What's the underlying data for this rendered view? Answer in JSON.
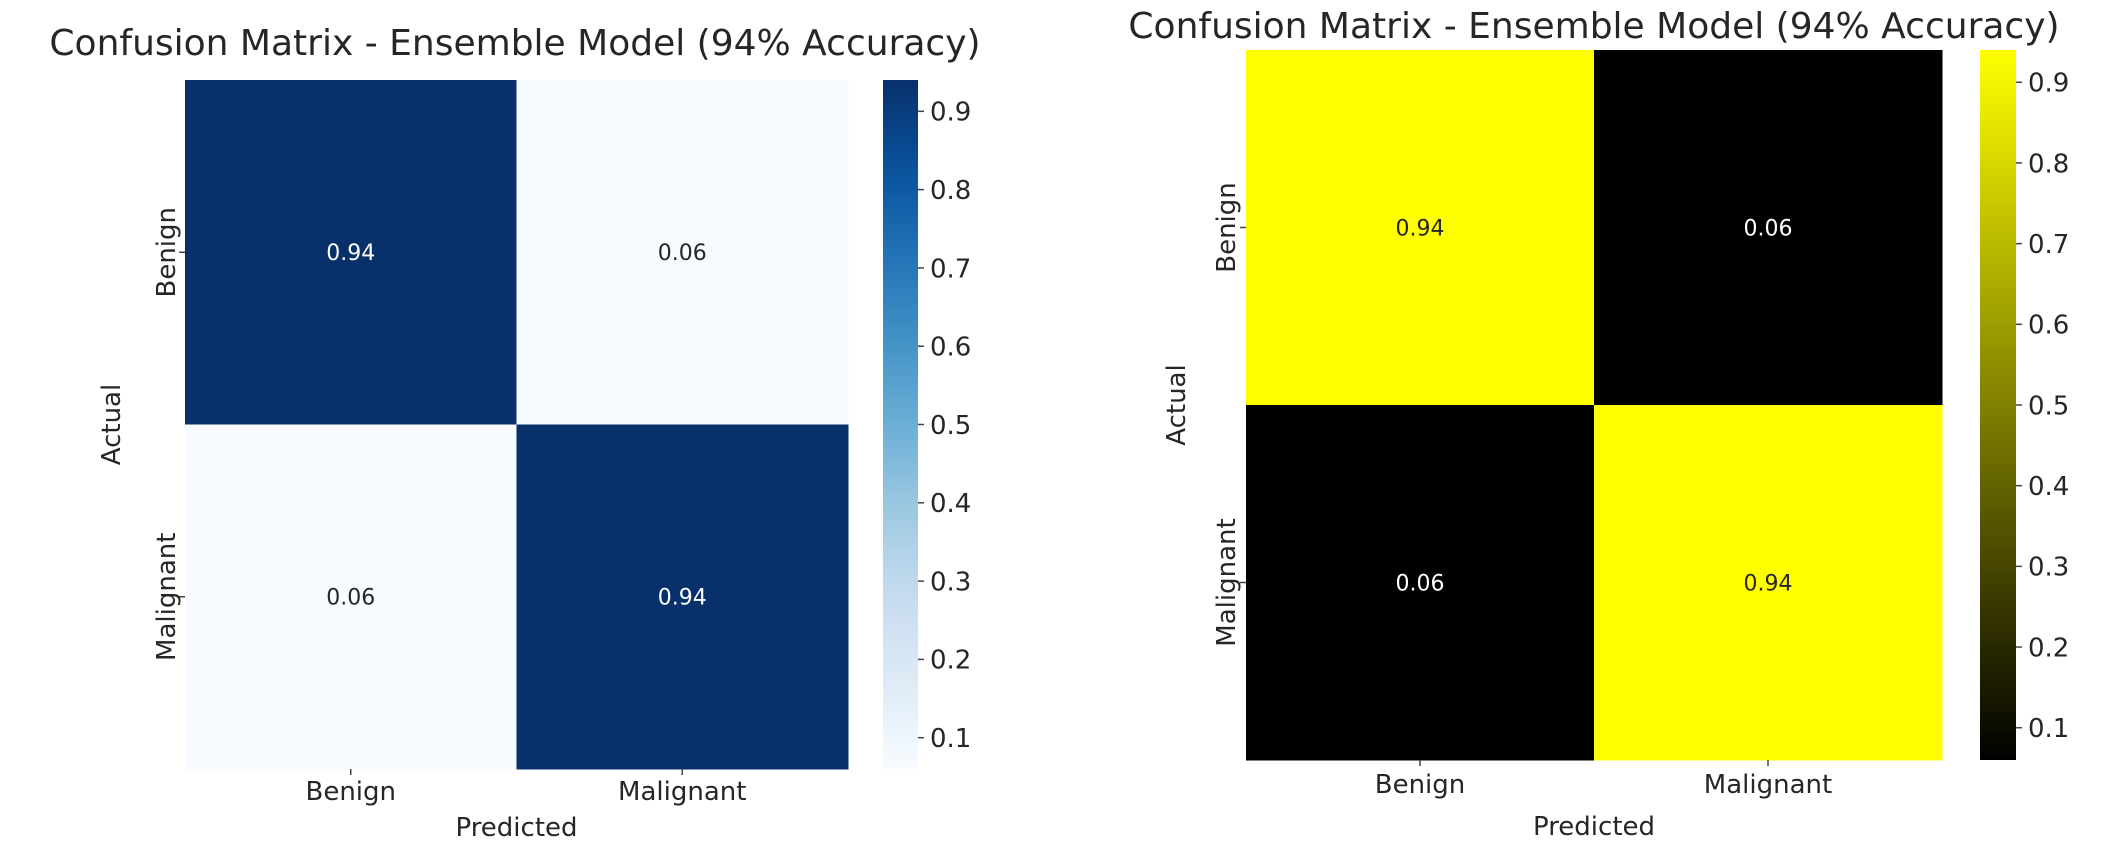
{
  "chart_data": [
    {
      "type": "heatmap",
      "title": "Confusion Matrix - Ensemble Model (94% Accuracy)",
      "xlabel": "Predicted",
      "ylabel": "Actual",
      "x_categories": [
        "Benign",
        "Malignant"
      ],
      "y_categories": [
        "Benign",
        "Malignant"
      ],
      "values": [
        [
          0.94,
          0.06
        ],
        [
          0.06,
          0.94
        ]
      ],
      "annotations": [
        [
          "0.94",
          "0.06"
        ],
        [
          "0.06",
          "0.94"
        ]
      ],
      "colormap": "Blues",
      "colormap_colors": [
        "#f7fbff",
        "#deebf7",
        "#c6dbef",
        "#9ecae1",
        "#6baed6",
        "#4292c6",
        "#2171b5",
        "#08519c",
        "#08306b"
      ],
      "value_range": [
        0.06,
        0.94
      ],
      "colorbar_ticks": [
        0.1,
        0.2,
        0.3,
        0.4,
        0.5,
        0.6,
        0.7,
        0.8,
        0.9
      ],
      "colorbar_tick_labels": [
        "0.1",
        "0.2",
        "0.3",
        "0.4",
        "0.5",
        "0.6",
        "0.7",
        "0.8",
        "0.9"
      ],
      "legend": "colorbar-right",
      "grid": false
    },
    {
      "type": "heatmap",
      "title": "Confusion Matrix - Ensemble Model (94% Accuracy)",
      "xlabel": "Predicted",
      "ylabel": "Actual",
      "x_categories": [
        "Benign",
        "Malignant"
      ],
      "y_categories": [
        "Benign",
        "Malignant"
      ],
      "values": [
        [
          0.94,
          0.06
        ],
        [
          0.06,
          0.94
        ]
      ],
      "annotations": [
        [
          "0.94",
          "0.06"
        ],
        [
          "0.06",
          "0.94"
        ]
      ],
      "colormap": "black-to-yellow",
      "colormap_colors": [
        "#000000",
        "#ffff00"
      ],
      "value_range": [
        0.06,
        0.94
      ],
      "colorbar_ticks": [
        0.1,
        0.2,
        0.3,
        0.4,
        0.5,
        0.6,
        0.7,
        0.8,
        0.9
      ],
      "colorbar_tick_labels": [
        "0.1",
        "0.2",
        "0.3",
        "0.4",
        "0.5",
        "0.6",
        "0.7",
        "0.8",
        "0.9"
      ],
      "legend": "colorbar-right",
      "grid": false
    }
  ]
}
